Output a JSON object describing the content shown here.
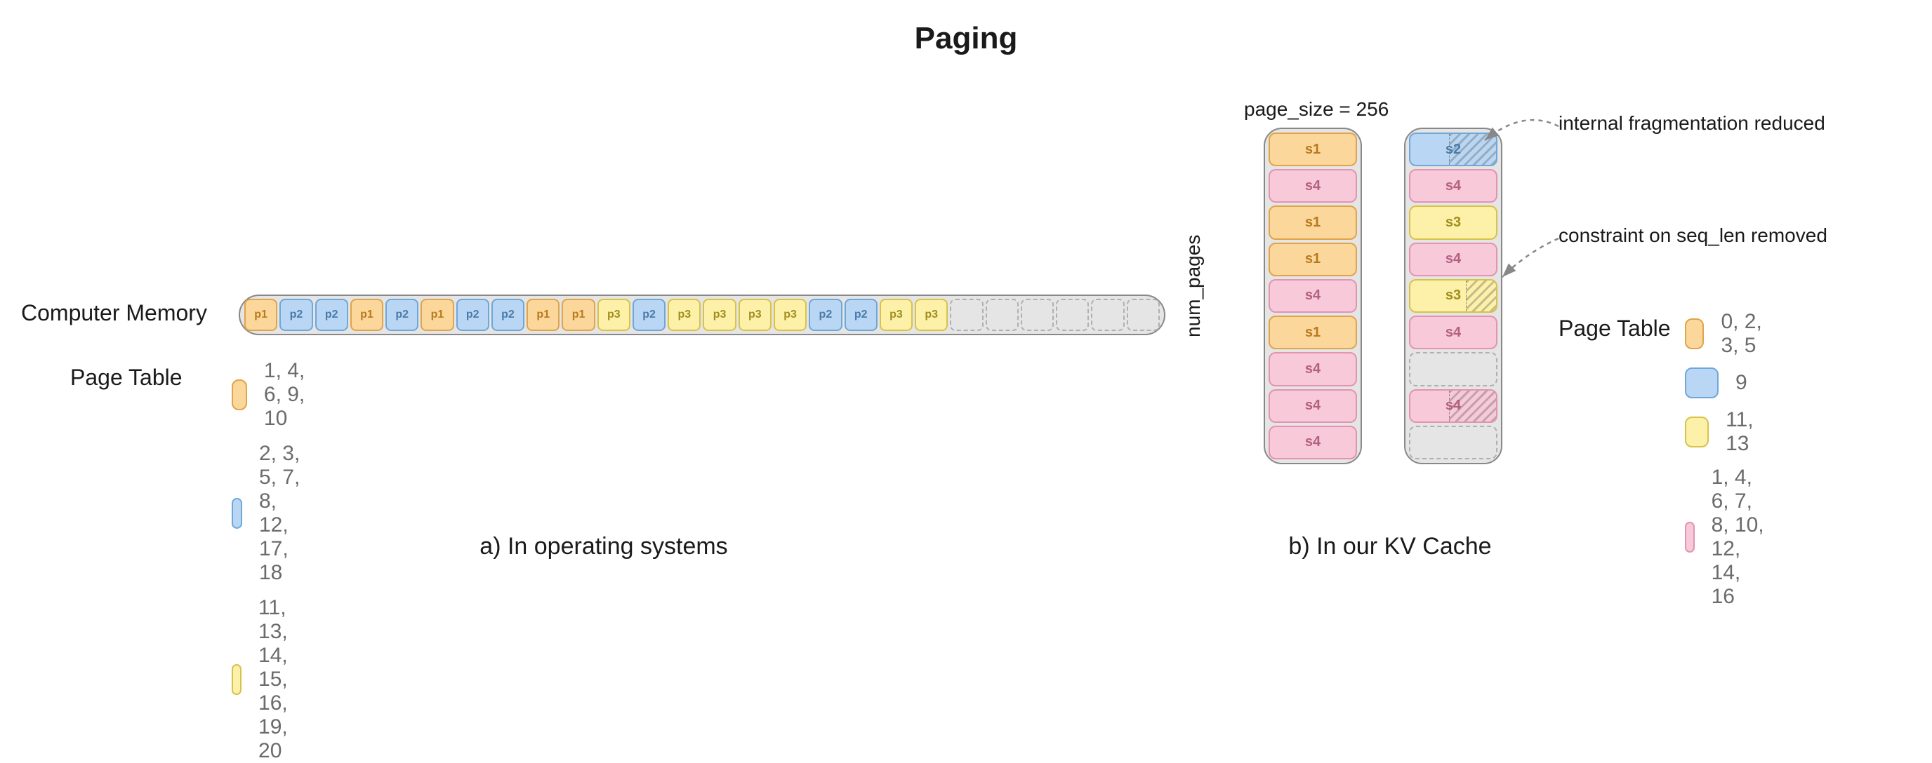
{
  "title": "Paging",
  "colors": {
    "orange": {
      "fill": "#fcd79b",
      "border": "#e0a44a",
      "text": "#b77a1e"
    },
    "blue": {
      "fill": "#b9d7f4",
      "border": "#6fa7d9",
      "text": "#4a7aa8"
    },
    "yellow": {
      "fill": "#fdf0a8",
      "border": "#d8c24a",
      "text": "#a08d1e"
    },
    "pink": {
      "fill": "#f7c9d9",
      "border": "#e294b2",
      "text": "#b35f80"
    },
    "empty": {
      "fill": "#e5e5e5",
      "border": "#b0b0b0"
    }
  },
  "panelA": {
    "memLabel": "Computer Memory",
    "ptLabel": "Page Table",
    "caption": "a) In operating systems",
    "memory_slots": 26,
    "memory": [
      {
        "slot": 1,
        "proc": "p1",
        "colorKey": "orange"
      },
      {
        "slot": 2,
        "proc": "p2",
        "colorKey": "blue"
      },
      {
        "slot": 3,
        "proc": "p2",
        "colorKey": "blue"
      },
      {
        "slot": 4,
        "proc": "p1",
        "colorKey": "orange"
      },
      {
        "slot": 5,
        "proc": "p2",
        "colorKey": "blue"
      },
      {
        "slot": 6,
        "proc": "p1",
        "colorKey": "orange"
      },
      {
        "slot": 7,
        "proc": "p2",
        "colorKey": "blue"
      },
      {
        "slot": 8,
        "proc": "p2",
        "colorKey": "blue"
      },
      {
        "slot": 9,
        "proc": "p1",
        "colorKey": "orange"
      },
      {
        "slot": 10,
        "proc": "p1",
        "colorKey": "orange"
      },
      {
        "slot": 11,
        "proc": "p3",
        "colorKey": "yellow"
      },
      {
        "slot": 12,
        "proc": "p2",
        "colorKey": "blue"
      },
      {
        "slot": 13,
        "proc": "p3",
        "colorKey": "yellow"
      },
      {
        "slot": 14,
        "proc": "p3",
        "colorKey": "yellow"
      },
      {
        "slot": 15,
        "proc": "p3",
        "colorKey": "yellow"
      },
      {
        "slot": 16,
        "proc": "p3",
        "colorKey": "yellow"
      },
      {
        "slot": 17,
        "proc": "p2",
        "colorKey": "blue"
      },
      {
        "slot": 18,
        "proc": "p2",
        "colorKey": "blue"
      },
      {
        "slot": 19,
        "proc": "p3",
        "colorKey": "yellow"
      },
      {
        "slot": 20,
        "proc": "p3",
        "colorKey": "yellow"
      }
    ],
    "pageTable": [
      {
        "colorKey": "orange",
        "indices": "1, 4, 6, 9, 10"
      },
      {
        "colorKey": "blue",
        "indices": "2, 3, 5, 7, 8, 12, 17, 18"
      },
      {
        "colorKey": "yellow",
        "indices": "11, 13, 14, 15, 16, 19, 20"
      }
    ]
  },
  "panelB": {
    "pageSizeLabel": "page_size = 256",
    "numPagesLabel": "num_pages",
    "ptLabel": "Page Table",
    "caption": "b) In our KV Cache",
    "annot1": "internal fragmentation reduced",
    "annot2": "constraint on seq_len removed",
    "tower_slots": 9,
    "towerA": [
      {
        "slot": 0,
        "seq": "s1",
        "colorKey": "orange"
      },
      {
        "slot": 1,
        "seq": "s4",
        "colorKey": "pink"
      },
      {
        "slot": 2,
        "seq": "s1",
        "colorKey": "orange"
      },
      {
        "slot": 3,
        "seq": "s1",
        "colorKey": "orange"
      },
      {
        "slot": 4,
        "seq": "s4",
        "colorKey": "pink"
      },
      {
        "slot": 5,
        "seq": "s1",
        "colorKey": "orange"
      },
      {
        "slot": 6,
        "seq": "s4",
        "colorKey": "pink"
      },
      {
        "slot": 7,
        "seq": "s4",
        "colorKey": "pink"
      },
      {
        "slot": 8,
        "seq": "s4",
        "colorKey": "pink"
      }
    ],
    "towerB": [
      {
        "slot": 9,
        "seq": "s2",
        "colorKey": "blue",
        "frag": 0.55
      },
      {
        "slot": 10,
        "seq": "s4",
        "colorKey": "pink"
      },
      {
        "slot": 11,
        "seq": "s3",
        "colorKey": "yellow"
      },
      {
        "slot": 12,
        "seq": "s4",
        "colorKey": "pink"
      },
      {
        "slot": 13,
        "seq": "s3",
        "colorKey": "yellow",
        "frag": 0.35
      },
      {
        "slot": 14,
        "seq": "s4",
        "colorKey": "pink"
      },
      {
        "slot": 15,
        "seq": "",
        "colorKey": "empty"
      },
      {
        "slot": 16,
        "seq": "s4",
        "colorKey": "pink",
        "frag": 0.55
      }
    ],
    "pageTable": [
      {
        "colorKey": "orange",
        "indices": "0, 2, 3, 5"
      },
      {
        "colorKey": "blue",
        "indices": "9"
      },
      {
        "colorKey": "yellow",
        "indices": "11, 13"
      },
      {
        "colorKey": "pink",
        "indices": "1, 4, 6, 7, 8, 10, 12, 14, 16"
      }
    ]
  }
}
